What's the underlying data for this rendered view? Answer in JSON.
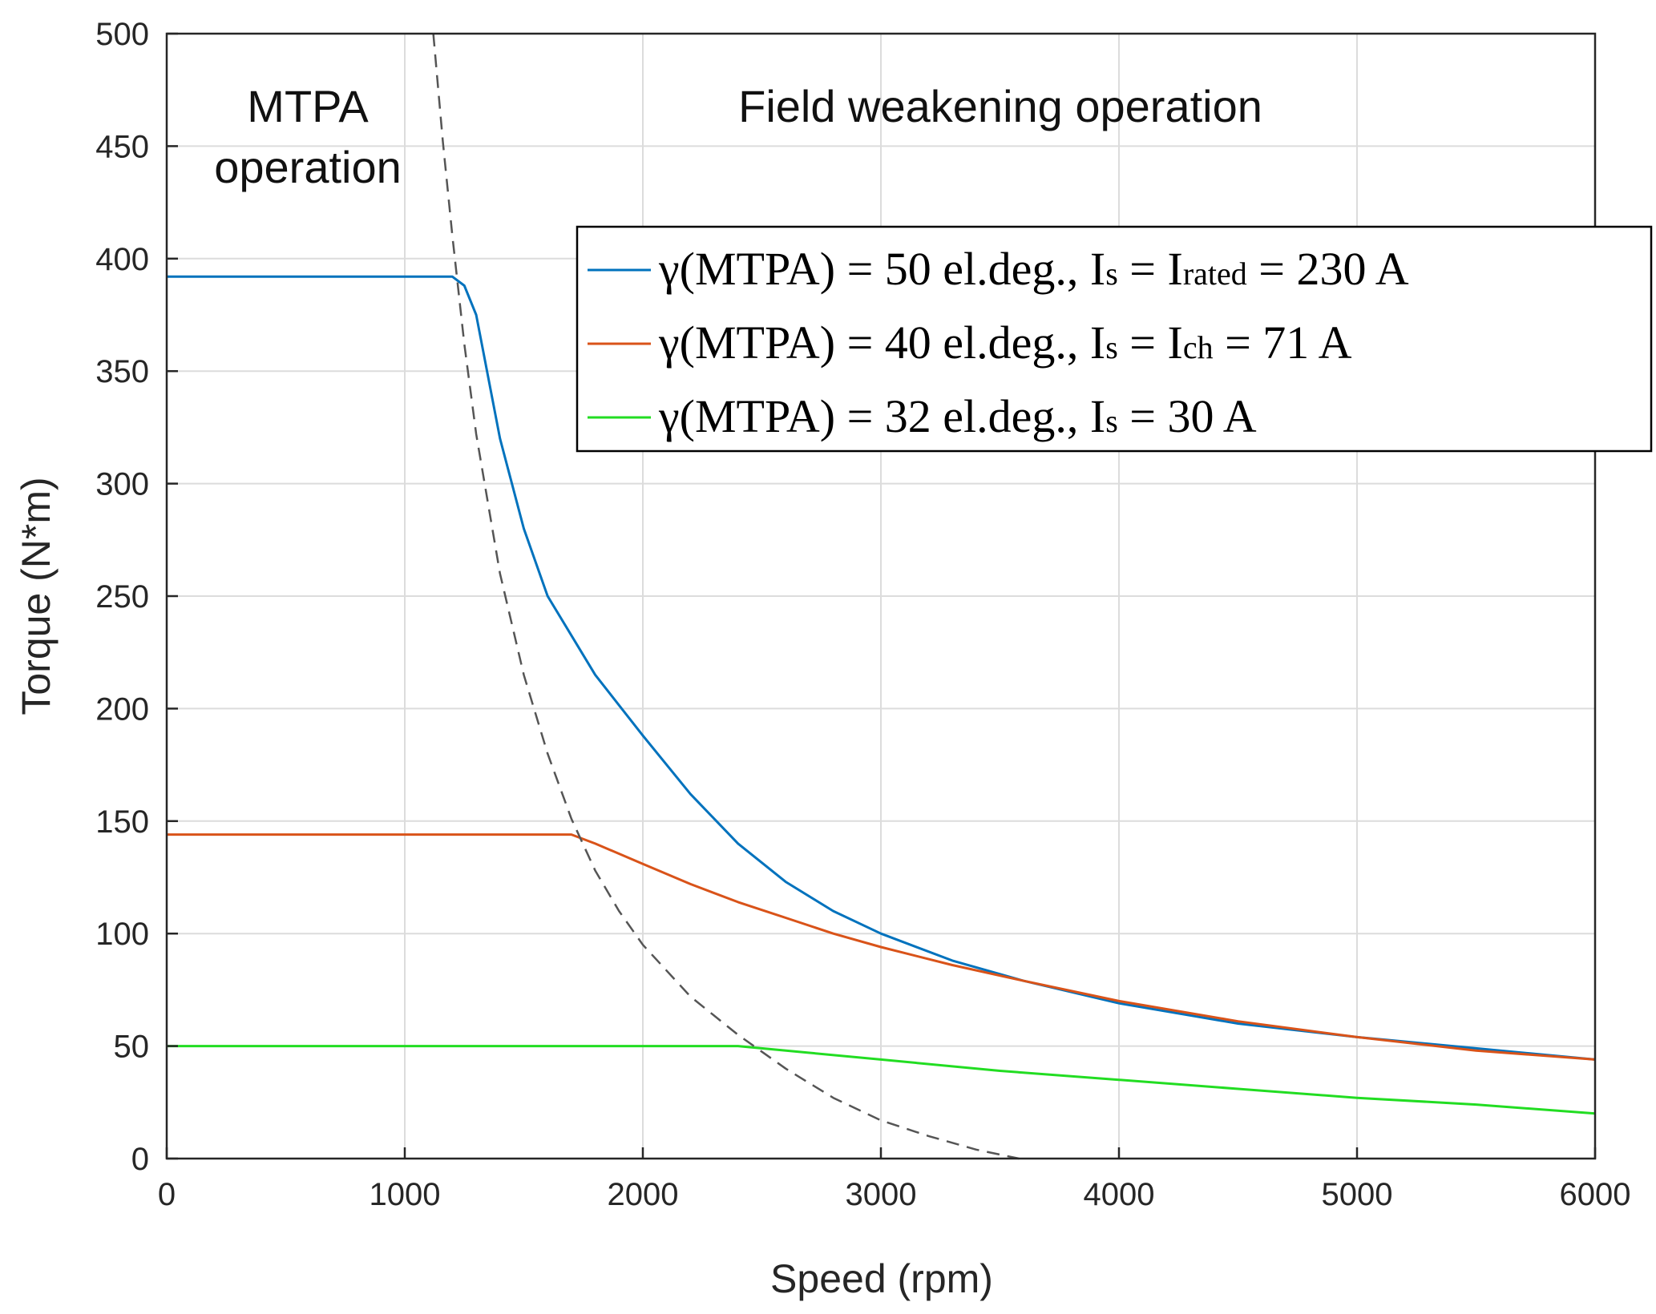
{
  "chart_data": {
    "type": "line",
    "title": "",
    "xlabel": "Speed  (rpm)",
    "ylabel": "Torque (N*m)",
    "xlim": [
      0,
      6000
    ],
    "ylim": [
      0,
      500
    ],
    "xticks": [
      0,
      1000,
      2000,
      3000,
      4000,
      5000,
      6000
    ],
    "yticks": [
      0,
      50,
      100,
      150,
      200,
      250,
      300,
      350,
      400,
      450,
      500
    ],
    "grid": true,
    "legend_position": "top-right",
    "annotations": {
      "mtpa_line1": "MTPA",
      "mtpa_line2": "operation",
      "field_weakening": "Field weakening operation"
    },
    "series": [
      {
        "name": "γ(MTPA) = 50 el.deg., Is = Irated = 230 A",
        "legend_parts": [
          "γ(MTPA) = 50 el.deg., I",
          "s",
          " = I",
          "rated",
          " = 230 A"
        ],
        "color": "#0072BD",
        "style": "solid",
        "x": [
          0,
          1200,
          1250,
          1300,
          1400,
          1500,
          1600,
          1800,
          2000,
          2200,
          2400,
          2600,
          2800,
          3000,
          3300,
          3600,
          4000,
          4500,
          5000,
          6000
        ],
        "values": [
          392,
          392,
          388,
          375,
          320,
          280,
          250,
          215,
          188,
          162,
          140,
          123,
          110,
          100,
          88,
          79,
          69,
          60,
          54,
          44
        ]
      },
      {
        "name": "γ(MTPA) = 40 el.deg., Is = Ich = 71 A",
        "legend_parts": [
          "γ(MTPA) = 40 el.deg., I",
          "s",
          " = I",
          "ch",
          " = 71 A"
        ],
        "color": "#D95319",
        "style": "solid",
        "x": [
          0,
          1700,
          1800,
          2000,
          2200,
          2400,
          2600,
          2800,
          3000,
          3300,
          3600,
          4000,
          4500,
          5000,
          5500,
          6000
        ],
        "values": [
          144,
          144,
          140,
          131,
          122,
          114,
          107,
          100,
          94,
          86,
          79,
          70,
          61,
          54,
          48,
          44
        ]
      },
      {
        "name": "γ(MTPA) = 32 el.deg., Is = 30 A",
        "legend_parts": [
          "γ(MTPA) = 32 el.deg., I",
          "s",
          " = 30 A",
          "",
          ""
        ],
        "color": "#22DD22",
        "style": "solid",
        "x": [
          0,
          2400,
          2700,
          3000,
          3500,
          4000,
          4500,
          5000,
          5500,
          6000
        ],
        "values": [
          50,
          50,
          47,
          44,
          39,
          35,
          31,
          27,
          24,
          20
        ]
      },
      {
        "name": "limit curve",
        "legend_parts": [],
        "color": "#555555",
        "style": "dashed",
        "x": [
          1120,
          1160,
          1200,
          1250,
          1300,
          1400,
          1500,
          1600,
          1700,
          1800,
          1900,
          2000,
          2200,
          2400,
          2600,
          2800,
          3000,
          3200,
          3400,
          3580
        ],
        "values": [
          500,
          452,
          410,
          362,
          322,
          260,
          215,
          180,
          151,
          128,
          110,
          95,
          72,
          55,
          40,
          27,
          17,
          10,
          4,
          0
        ]
      }
    ]
  }
}
